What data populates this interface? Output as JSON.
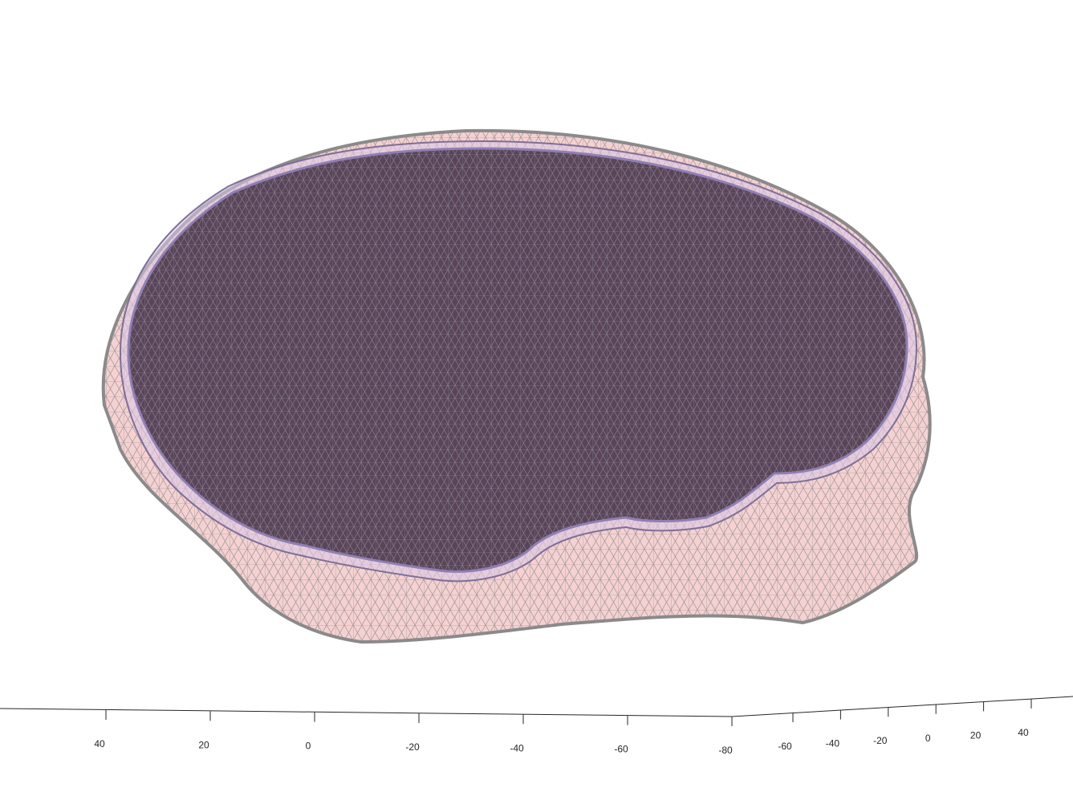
{
  "figure": {
    "description_type": "3d-mesh-render",
    "colors": {
      "background": "#ffffff",
      "scalp_fill": "#f5c9c9",
      "scalp_edge": "#8a8a8a",
      "skull_fill": "#d9c9e8",
      "brain_fill": "#5a4558",
      "brain_edge": "#8c8296",
      "axis": "#262626"
    }
  },
  "axes": {
    "left_axis_ticks": [
      "40",
      "20",
      "0",
      "-20",
      "-40",
      "-60",
      "-80"
    ],
    "right_axis_ticks": [
      "-60",
      "-40",
      "-20",
      "0",
      "20",
      "40"
    ]
  }
}
